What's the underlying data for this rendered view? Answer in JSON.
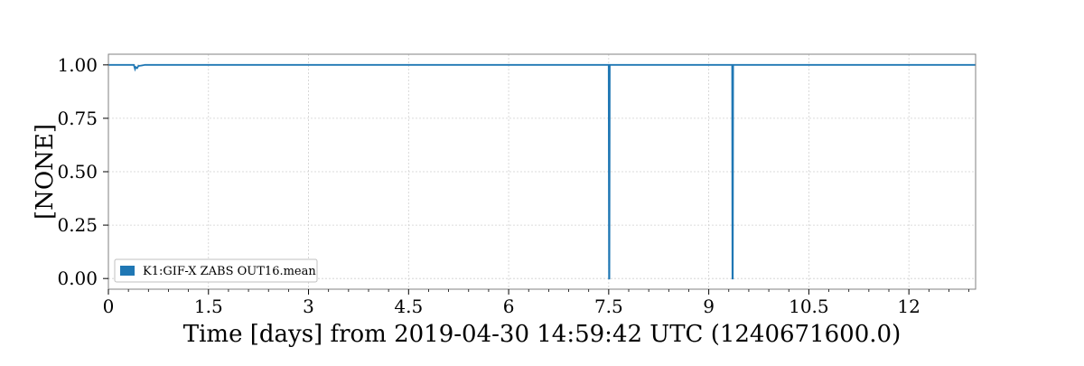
{
  "chart_data": {
    "type": "line",
    "title": "",
    "xlabel": "Time [days] from 2019-04-30 14:59:42 UTC (1240671600.0)",
    "ylabel": "[NONE]",
    "xlim": [
      0,
      13
    ],
    "ylim": [
      -0.05,
      1.05
    ],
    "x_ticks": [
      0,
      1.5,
      3,
      4.5,
      6,
      7.5,
      9,
      10.5,
      12
    ],
    "x_tick_labels": [
      "0",
      "1.5",
      "3",
      "4.5",
      "6",
      "7.5",
      "9",
      "10.5",
      "12"
    ],
    "y_ticks": [
      0,
      0.25,
      0.5,
      0.75,
      1.0
    ],
    "y_tick_labels": [
      "0.00",
      "0.25",
      "0.50",
      "0.75",
      "1.00"
    ],
    "grid": true,
    "legend_position": "bottom-left",
    "series": [
      {
        "name": "K1:GIF-X ZABS OUT16.mean",
        "color": "#1f77b4",
        "x": [
          0,
          0.38,
          0.4,
          0.41,
          0.43,
          0.45,
          0.5,
          0.55,
          7.5,
          7.505,
          7.51,
          7.515,
          9.35,
          9.355,
          9.36,
          9.365,
          13
        ],
        "y": [
          1.0,
          1.0,
          0.98,
          0.99,
          0.985,
          0.995,
          0.997,
          1.0,
          1.0,
          0.0,
          0.0,
          1.0,
          1.0,
          0.0,
          0.0,
          1.0,
          1.0
        ]
      }
    ]
  }
}
